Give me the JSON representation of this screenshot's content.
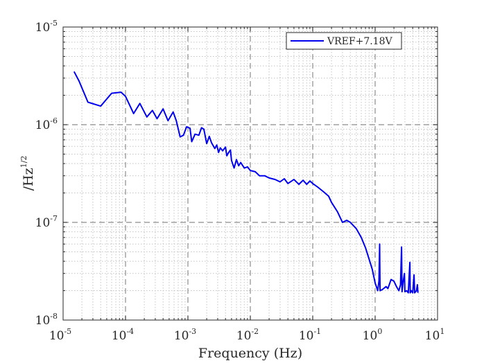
{
  "chart_data": {
    "type": "line",
    "title": "",
    "xlabel": "Frequency (Hz)",
    "ylabel": "/Hz",
    "ylabel_exponent": "1/2",
    "xscale": "log",
    "yscale": "log",
    "xlim": [
      1e-05,
      10
    ],
    "ylim": [
      1e-08,
      1e-05
    ],
    "grid": true,
    "legend_position": "top-right",
    "x_ticks": [
      {
        "base": "10",
        "exp": "-5"
      },
      {
        "base": "10",
        "exp": "-4"
      },
      {
        "base": "10",
        "exp": "-3"
      },
      {
        "base": "10",
        "exp": "-2"
      },
      {
        "base": "10",
        "exp": "-1"
      },
      {
        "base": "10",
        "exp": "0"
      },
      {
        "base": "10",
        "exp": "1"
      }
    ],
    "y_ticks": [
      {
        "base": "10",
        "exp": "-8"
      },
      {
        "base": "10",
        "exp": "-7"
      },
      {
        "base": "10",
        "exp": "-6"
      },
      {
        "base": "10",
        "exp": "-5"
      }
    ],
    "series": [
      {
        "name": "VREF+7.18V",
        "color": "#0000ee",
        "points": [
          [
            1.5e-05,
            3.5e-06
          ],
          [
            1.8e-05,
            2.8e-06
          ],
          [
            2.5e-05,
            1.7e-06
          ],
          [
            4e-05,
            1.55e-06
          ],
          [
            6e-05,
            2.1e-06
          ],
          [
            8.5e-05,
            2.15e-06
          ],
          [
            0.0001,
            1.95e-06
          ],
          [
            0.000135,
            1.3e-06
          ],
          [
            0.00017,
            1.65e-06
          ],
          [
            0.00022,
            1.2e-06
          ],
          [
            0.00027,
            1.4e-06
          ],
          [
            0.00032,
            1.15e-06
          ],
          [
            0.0004,
            1.45e-06
          ],
          [
            0.00048,
            1.1e-06
          ],
          [
            0.00058,
            1.35e-06
          ],
          [
            0.00065,
            1.1e-06
          ],
          [
            0.00075,
            7.5e-07
          ],
          [
            0.00085,
            7.8e-07
          ],
          [
            0.00095,
            9.5e-07
          ],
          [
            0.00108,
            9.2e-07
          ],
          [
            0.00115,
            6.7e-07
          ],
          [
            0.0013,
            8e-07
          ],
          [
            0.0015,
            7.8e-07
          ],
          [
            0.00165,
            9.3e-07
          ],
          [
            0.0018,
            9e-07
          ],
          [
            0.002,
            6.4e-07
          ],
          [
            0.0022,
            7.6e-07
          ],
          [
            0.0024,
            6.5e-07
          ],
          [
            0.0027,
            5.7e-07
          ],
          [
            0.0029,
            6.2e-07
          ],
          [
            0.0031,
            5.2e-07
          ],
          [
            0.0033,
            5.8e-07
          ],
          [
            0.0036,
            5.4e-07
          ],
          [
            0.004,
            5.9e-07
          ],
          [
            0.0042,
            4.8e-07
          ],
          [
            0.0045,
            5.2e-07
          ],
          [
            0.0048,
            5.5e-07
          ],
          [
            0.005,
            4.3e-07
          ],
          [
            0.0055,
            3.6e-07
          ],
          [
            0.006,
            4.4e-07
          ],
          [
            0.0065,
            3.8e-07
          ],
          [
            0.007,
            4.1e-07
          ],
          [
            0.008,
            3.6e-07
          ],
          [
            0.009,
            3.7e-07
          ],
          [
            0.01,
            3.4e-07
          ],
          [
            0.012,
            3.3e-07
          ],
          [
            0.014,
            3e-07
          ],
          [
            0.017,
            3e-07
          ],
          [
            0.02,
            2.85e-07
          ],
          [
            0.025,
            2.75e-07
          ],
          [
            0.03,
            2.6e-07
          ],
          [
            0.035,
            2.8e-07
          ],
          [
            0.04,
            2.5e-07
          ],
          [
            0.05,
            2.75e-07
          ],
          [
            0.06,
            2.45e-07
          ],
          [
            0.07,
            2.7e-07
          ],
          [
            0.08,
            2.45e-07
          ],
          [
            0.09,
            2.65e-07
          ],
          [
            0.1,
            2.5e-07
          ],
          [
            0.12,
            2.3e-07
          ],
          [
            0.15,
            2.05e-07
          ],
          [
            0.18,
            1.85e-07
          ],
          [
            0.2,
            1.6e-07
          ],
          [
            0.25,
            1.28e-07
          ],
          [
            0.3,
            1e-07
          ],
          [
            0.35,
            1.05e-07
          ],
          [
            0.4,
            1e-07
          ],
          [
            0.5,
            8.6e-08
          ],
          [
            0.6,
            7e-08
          ],
          [
            0.7,
            5.5e-08
          ],
          [
            0.8,
            4.2e-08
          ],
          [
            0.9,
            3.3e-08
          ],
          [
            1.0,
            2.4e-08
          ],
          [
            1.1,
            2e-08
          ],
          [
            1.15,
            2.5e-08
          ],
          [
            1.18,
            6e-08
          ],
          [
            1.2,
            2e-08
          ],
          [
            1.3,
            2.05e-08
          ],
          [
            1.5,
            2.2e-08
          ],
          [
            1.6,
            2.1e-08
          ],
          [
            1.8,
            2.6e-08
          ],
          [
            2.0,
            2.5e-08
          ],
          [
            2.2,
            2.2e-08
          ],
          [
            2.4,
            2e-08
          ],
          [
            2.55,
            2.3e-08
          ],
          [
            2.65,
            5.6e-08
          ],
          [
            2.7,
            1.95e-08
          ],
          [
            2.8,
            2.4e-08
          ],
          [
            2.95,
            3e-08
          ],
          [
            3.0,
            1.95e-08
          ],
          [
            3.2,
            2e-08
          ],
          [
            3.4,
            1.9e-08
          ],
          [
            3.6,
            3.9e-08
          ],
          [
            3.65,
            1.9e-08
          ],
          [
            3.8,
            2e-08
          ],
          [
            4.0,
            1.9e-08
          ],
          [
            4.2,
            2.9e-08
          ],
          [
            4.3,
            1.9e-08
          ],
          [
            4.6,
            2e-08
          ],
          [
            4.75,
            2.3e-08
          ],
          [
            4.85,
            1.9e-08
          ]
        ]
      }
    ]
  }
}
